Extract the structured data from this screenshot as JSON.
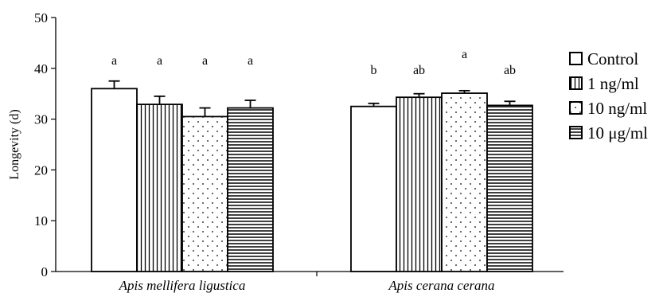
{
  "chart_data": {
    "type": "bar",
    "title": "",
    "xlabel": "",
    "ylabel": "Longevity (d)",
    "ylim": [
      0,
      50
    ],
    "yticks": [
      0,
      10,
      20,
      30,
      40,
      50
    ],
    "categories": [
      "Apis mellifera ligustica",
      "Apis cerana cerana"
    ],
    "series": [
      {
        "name": "Control",
        "pattern": "open",
        "values": [
          36.0,
          32.5
        ],
        "errors": [
          1.5,
          0.6
        ],
        "labels": [
          "a",
          "b"
        ]
      },
      {
        "name": "1 ng/ml",
        "pattern": "vertical",
        "values": [
          32.9,
          34.3
        ],
        "errors": [
          1.6,
          0.7
        ],
        "labels": [
          "a",
          "ab"
        ]
      },
      {
        "name": "10 ng/ml",
        "pattern": "dotted",
        "values": [
          30.5,
          35.1
        ],
        "errors": [
          1.7,
          0.5
        ],
        "labels": [
          "a",
          "a"
        ]
      },
      {
        "name": "10 μg/ml",
        "pattern": "horizontal",
        "values": [
          32.2,
          32.7
        ],
        "errors": [
          1.5,
          0.8
        ],
        "labels": [
          "a",
          "ab"
        ]
      }
    ],
    "legend_position": "right",
    "grid": false
  }
}
